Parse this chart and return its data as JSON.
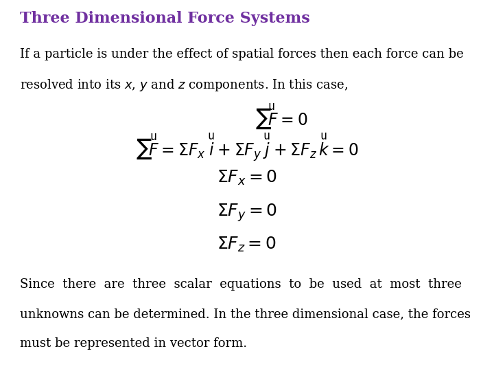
{
  "title": "Three Dimensional Force Systems",
  "title_color": "#7030A0",
  "title_fontsize": 16,
  "body_fontsize": 13,
  "math_fontsize": 15,
  "background_color": "#ffffff",
  "text_color": "#000000",
  "line1": "If a particle is under the effect of spatial forces then each force can be",
  "line2": "resolved into its $x$, $y$ and $z$ components. In this case,",
  "footer1": "Since  there  are  three  scalar  equations  to  be  used  at  most  three",
  "footer2": "unknowns can be determined. In the three dimensional case, the forces",
  "footer3": "must be represented in vector form."
}
